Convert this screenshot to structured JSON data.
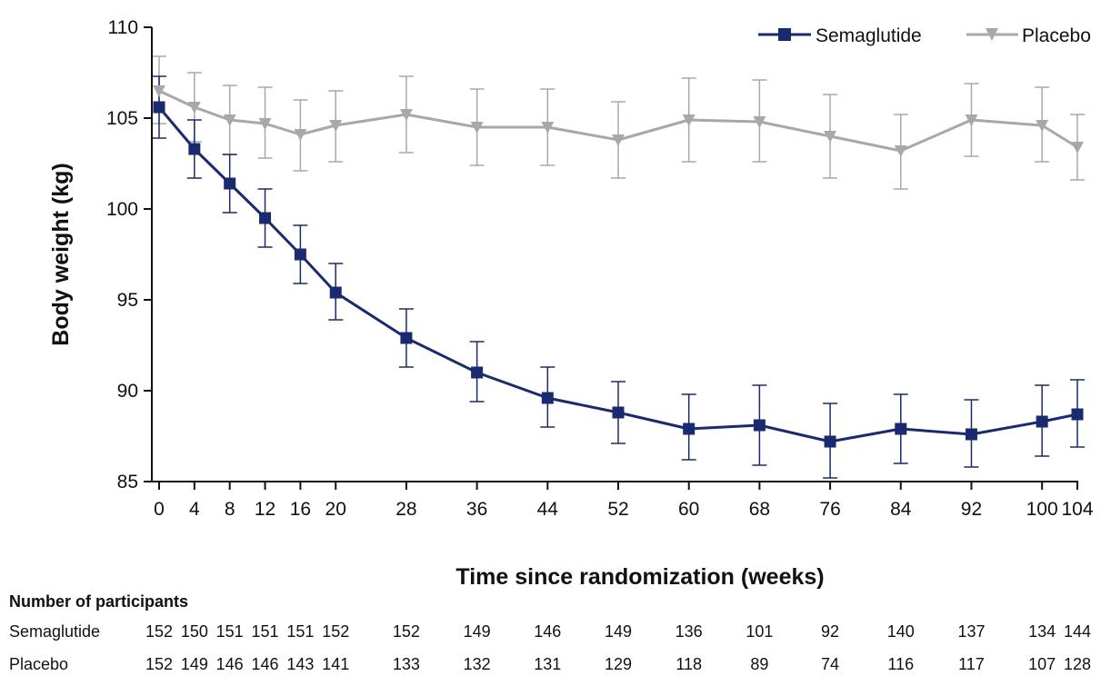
{
  "chart_data": {
    "type": "line",
    "title": "",
    "xlabel": "Time since randomization (weeks)",
    "ylabel": "Body weight (kg)",
    "x": [
      0,
      4,
      8,
      12,
      16,
      20,
      28,
      36,
      44,
      52,
      60,
      68,
      76,
      84,
      92,
      100,
      104
    ],
    "x_tick_labels": [
      "0",
      "4",
      "8",
      "12",
      "16",
      "20",
      "28",
      "36",
      "44",
      "52",
      "60",
      "68",
      "76",
      "84",
      "92",
      "100",
      "104"
    ],
    "y_ticks": [
      85,
      90,
      95,
      100,
      105,
      110
    ],
    "y_tick_labels": [
      "85",
      "90",
      "95",
      "100",
      "105",
      "110"
    ],
    "xlim": [
      0,
      104
    ],
    "ylim": [
      85,
      110
    ],
    "grid": false,
    "legend_position": "top-right",
    "series": [
      {
        "name": "Semaglutide",
        "color": "#1a2a6e",
        "marker": "square",
        "values": [
          105.6,
          103.3,
          101.4,
          99.5,
          97.5,
          95.4,
          92.9,
          91.0,
          89.6,
          88.8,
          87.9,
          88.1,
          87.2,
          87.9,
          87.6,
          88.3,
          88.7
        ],
        "error_low": [
          103.9,
          101.7,
          99.8,
          97.9,
          95.9,
          93.9,
          91.3,
          89.4,
          88.0,
          87.1,
          86.2,
          85.9,
          85.2,
          86.0,
          85.8,
          86.4,
          86.9
        ],
        "error_high": [
          107.3,
          104.9,
          103.0,
          101.1,
          99.1,
          97.0,
          94.5,
          92.7,
          91.3,
          90.5,
          89.8,
          90.3,
          89.3,
          89.8,
          89.5,
          90.3,
          90.6
        ]
      },
      {
        "name": "Placebo",
        "color": "#a8a8a8",
        "marker": "triangle-down",
        "values": [
          106.5,
          105.6,
          104.9,
          104.7,
          104.1,
          104.6,
          105.2,
          104.5,
          104.5,
          103.8,
          104.9,
          104.8,
          104.0,
          103.2,
          104.9,
          104.6,
          103.4
        ],
        "error_low": [
          104.7,
          103.7,
          103.0,
          102.8,
          102.1,
          102.6,
          103.1,
          102.4,
          102.4,
          101.7,
          102.6,
          102.6,
          101.7,
          101.1,
          102.9,
          102.6,
          101.6
        ],
        "error_high": [
          108.4,
          107.5,
          106.8,
          106.7,
          106.0,
          106.5,
          107.3,
          106.6,
          106.6,
          105.9,
          107.2,
          107.1,
          106.3,
          105.2,
          106.9,
          106.7,
          105.2
        ]
      }
    ],
    "participants_table": {
      "title": "Number of participants",
      "rows": [
        {
          "label": "Semaglutide",
          "values": [
            "152",
            "150",
            "151",
            "151",
            "151",
            "152",
            "152",
            "149",
            "146",
            "149",
            "136",
            "101",
            "92",
            "140",
            "137",
            "134",
            "144"
          ]
        },
        {
          "label": "Placebo",
          "values": [
            "152",
            "149",
            "146",
            "146",
            "143",
            "141",
            "133",
            "132",
            "131",
            "129",
            "118",
            "89",
            "74",
            "116",
            "117",
            "107",
            "128"
          ]
        }
      ]
    }
  }
}
